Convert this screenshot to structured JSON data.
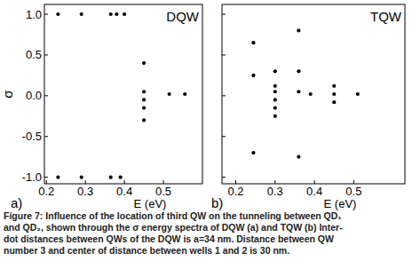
{
  "chart_data": [
    {
      "type": "scatter",
      "title": "DQW",
      "panel_label": "a)",
      "x_label": "E (eV)",
      "y_label": "σ",
      "x": [
        0.23,
        0.29,
        0.365,
        0.38,
        0.4,
        0.23,
        0.29,
        0.365,
        0.39,
        0.45,
        0.45,
        0.45,
        0.45,
        0.45,
        0.515,
        0.555
      ],
      "values": [
        1.0,
        1.0,
        1.0,
        1.0,
        1.0,
        -1.0,
        -1.0,
        -1.0,
        -1.0,
        0.4,
        0.05,
        -0.05,
        -0.15,
        -0.3,
        0.02,
        0.02
      ],
      "color": "#000000",
      "marker": "circle",
      "grid": false,
      "xlim": [
        0.195,
        0.6
      ],
      "ylim": [
        -1.08,
        1.12
      ],
      "xticks": [
        0.2,
        0.3,
        0.4,
        0.5
      ],
      "yticks": [
        {
          "value": 1,
          "label": "1.0"
        },
        {
          "value": 0.5,
          "label": "0.5"
        },
        {
          "value": 0,
          "label": "0.0"
        },
        {
          "value": -0.5,
          "label": "-0.5"
        },
        {
          "value": -1,
          "label": "-1.0"
        }
      ]
    },
    {
      "type": "scatter",
      "title": "TQW",
      "panel_label": "b)",
      "x_label": "E (eV)",
      "x": [
        0.245,
        0.245,
        0.245,
        0.3,
        0.3,
        0.3,
        0.3,
        0.3,
        0.3,
        0.36,
        0.36,
        0.36,
        0.36,
        0.39,
        0.45,
        0.45,
        0.45,
        0.51
      ],
      "values": [
        0.65,
        0.25,
        -0.7,
        0.3,
        0.12,
        0.05,
        -0.05,
        -0.15,
        -0.25,
        0.8,
        0.3,
        0.05,
        -0.75,
        0.02,
        0.12,
        0.02,
        -0.08,
        0.02
      ],
      "color": "#000000",
      "marker": "circle",
      "grid": false,
      "tick_labels": "x",
      "xlim": [
        0.165,
        0.63
      ],
      "ylim": [
        -1.08,
        1.12
      ],
      "xticks": [
        0.2,
        0.3,
        0.4,
        0.5
      ],
      "yticks": [
        1,
        0.5,
        0,
        -0.5,
        -1
      ]
    }
  ],
  "caption_label": "Figure 7:",
  "caption_lines": [
    "Influence of the location of third QW on the tunneling between QD₁",
    "and QD₂, shown through the σ energy spectra of DQW (a) and TQW (b) Inter-",
    "dot distances between QWs of the DQW is a=34 nm. Distance between QW",
    "number 3 and center of distance between wells 1 and 2 is 30 nm."
  ]
}
